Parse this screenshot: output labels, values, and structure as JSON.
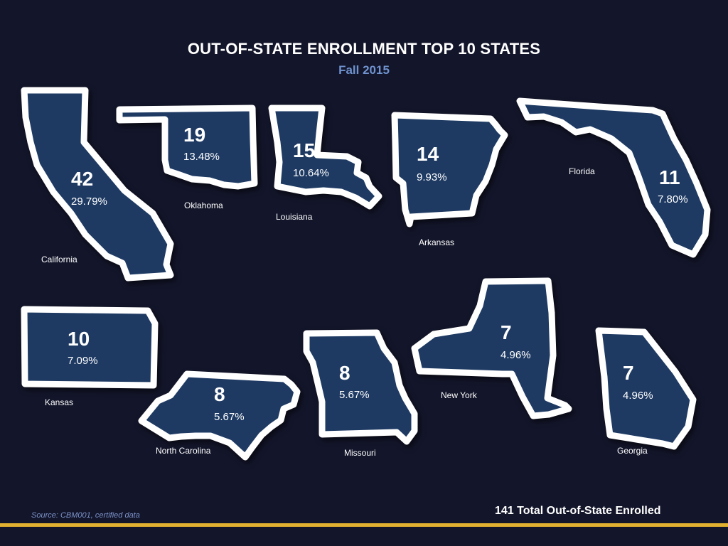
{
  "header": {
    "title": "OUT-OF-STATE ENROLLMENT TOP 10 STATES",
    "subtitle": "Fall 2015"
  },
  "states": {
    "california": {
      "name": "California",
      "count": "42",
      "pct": "29.79%"
    },
    "oklahoma": {
      "name": "Oklahoma",
      "count": "19",
      "pct": "13.48%"
    },
    "louisiana": {
      "name": "Louisiana",
      "count": "15",
      "pct": "10.64%"
    },
    "arkansas": {
      "name": "Arkansas",
      "count": "14",
      "pct": "9.93%"
    },
    "florida": {
      "name": "Florida",
      "count": "11",
      "pct": "7.80%"
    },
    "kansas": {
      "name": "Kansas",
      "count": "10",
      "pct": "7.09%"
    },
    "north_carolina": {
      "name": "North Carolina",
      "count": "8",
      "pct": "5.67%"
    },
    "missouri": {
      "name": "Missouri",
      "count": "8",
      "pct": "5.67%"
    },
    "new_york": {
      "name": "New York",
      "count": "7",
      "pct": "4.96%"
    },
    "georgia": {
      "name": "Georgia",
      "count": "7",
      "pct": "4.96%"
    }
  },
  "footer": {
    "source": "Source: CBM001, certified data",
    "total": "141 Total Out-of-State Enrolled"
  },
  "colors": {
    "background": "#13152a",
    "state_fill": "#1e3a63",
    "state_outline": "#ffffff",
    "subtitle": "#6f93cf",
    "accent_bar": "#e2b030"
  }
}
